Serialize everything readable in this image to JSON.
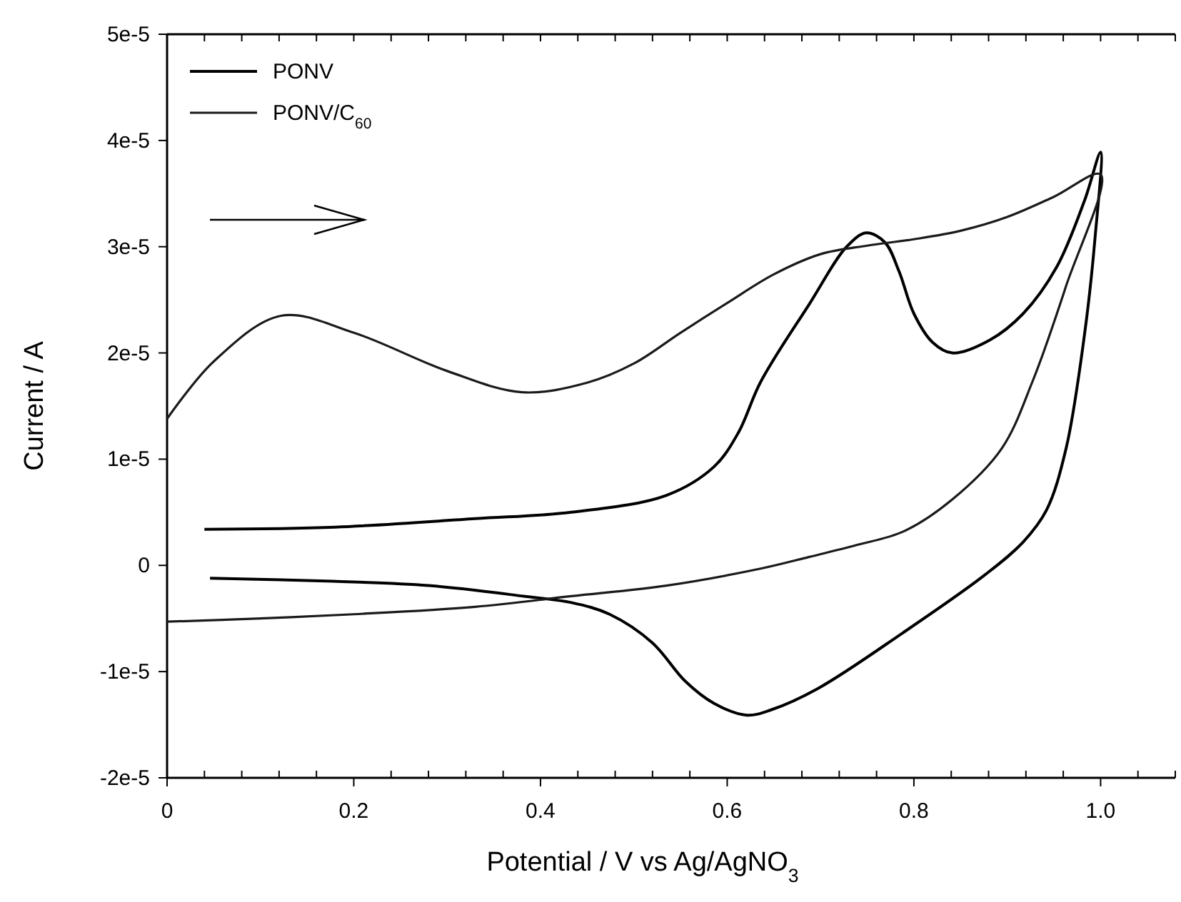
{
  "chart_data": {
    "type": "line",
    "xlabel": "Potential / V vs Ag/AgNO$_{3}$",
    "ylabel": "Current / A",
    "xlim": [
      0,
      1.08
    ],
    "ylim": [
      -2e-05,
      5e-05
    ],
    "xticks": [
      0,
      {
        "value": 0.04,
        "label": null
      },
      {
        "value": 0.08,
        "label": null
      },
      {
        "value": 0.12,
        "label": null
      },
      {
        "value": 0.16,
        "label": null
      },
      {
        "value": 0.2,
        "label": "0.2"
      },
      {
        "value": 0.24,
        "label": null
      },
      {
        "value": 0.28,
        "label": null
      },
      {
        "value": 0.32,
        "label": null
      },
      {
        "value": 0.36,
        "label": null
      },
      {
        "value": 0.4,
        "label": "0.4"
      },
      {
        "value": 0.44,
        "label": null
      },
      {
        "value": 0.48,
        "label": null
      },
      {
        "value": 0.52,
        "label": null
      },
      {
        "value": 0.56,
        "label": null
      },
      {
        "value": 0.6,
        "label": "0.6"
      },
      {
        "value": 0.64,
        "label": null
      },
      {
        "value": 0.68,
        "label": null
      },
      {
        "value": 0.72,
        "label": null
      },
      {
        "value": 0.76,
        "label": null
      },
      {
        "value": 0.8,
        "label": "0.8"
      },
      {
        "value": 0.84,
        "label": null
      },
      {
        "value": 0.88,
        "label": null
      },
      {
        "value": 0.92,
        "label": null
      },
      {
        "value": 0.96,
        "label": null
      },
      {
        "value": 1.0,
        "label": "1.0"
      },
      {
        "value": 1.04,
        "label": null
      },
      {
        "value": 1.08,
        "label": null
      }
    ],
    "yticks": [
      {
        "value": -2e-05,
        "label": "-2e-5"
      },
      {
        "value": -1e-05,
        "label": "-1e-5"
      },
      0,
      {
        "value": 1e-05,
        "label": "1e-5"
      },
      {
        "value": 2e-05,
        "label": "2e-5"
      },
      {
        "value": 3e-05,
        "label": "3e-5"
      },
      {
        "value": 4e-05,
        "label": "4e-5"
      },
      {
        "value": 5e-05,
        "label": "5e-5"
      }
    ],
    "grid": false,
    "legend": "top left",
    "marker": "none",
    "line_style": "solid",
    "series": [
      {
        "name": "PONV",
        "color": "#000000",
        "x": [
          0.04,
          0.18,
          0.33,
          0.433,
          0.535,
          0.586,
          0.612,
          0.636,
          0.688,
          0.728,
          0.749,
          0.769,
          0.784,
          0.8,
          0.82,
          0.841,
          0.881,
          0.917,
          0.953,
          0.983,
          1.0,
          0.994,
          0.983,
          0.963,
          0.942,
          0.917,
          0.876,
          0.789,
          0.697,
          0.647,
          0.621,
          0.586,
          0.555,
          0.52,
          0.474,
          0.433,
          0.382,
          0.28,
          0.178,
          0.046
        ],
        "values": [
          3.4e-06,
          3.6e-06,
          4.4e-06,
          5e-06,
          6.6e-06,
          9.3e-06,
          1.25e-05,
          1.73e-05,
          2.46e-05,
          3e-05,
          3.13e-05,
          3.04e-05,
          2.77e-05,
          2.37e-05,
          2.1e-05,
          2e-05,
          2.12e-05,
          2.37e-05,
          2.81e-05,
          3.44e-05,
          3.89e-05,
          3.08e-05,
          2.19e-05,
          1.1e-05,
          5.2e-06,
          2.2e-06,
          -9e-07,
          -6.3e-06,
          -1.16e-05,
          -1.36e-05,
          -1.41e-05,
          -1.3e-05,
          -1.09e-05,
          -7.3e-06,
          -4.6e-06,
          -3.5e-06,
          -2.9e-06,
          -1.9e-06,
          -1.5e-06,
          -1.2e-06
        ]
      },
      {
        "name": "PONV/C$_{60}$",
        "color": "#1a1a1a",
        "x": [
          0,
          0.05,
          0.122,
          0.2,
          0.3,
          0.38,
          0.45,
          0.5,
          0.55,
          0.6,
          0.65,
          0.7,
          0.75,
          0.8,
          0.85,
          0.9,
          0.95,
          1.0,
          0.963,
          0.927,
          0.894,
          0.841,
          0.789,
          0.738,
          0.688,
          0.636,
          0.535,
          0.433,
          0.33,
          0.2,
          0.1,
          0
        ],
        "values": [
          1.38e-05,
          1.92e-05,
          2.35e-05,
          2.19e-05,
          1.83e-05,
          1.63e-05,
          1.72e-05,
          1.9e-05,
          2.19e-05,
          2.47e-05,
          2.74e-05,
          2.93e-05,
          3.01e-05,
          3.07e-05,
          3.15e-05,
          3.28e-05,
          3.47e-05,
          3.68e-05,
          2.63e-05,
          1.73e-05,
          1.1e-05,
          6.2e-06,
          3.2e-06,
          1.9e-06,
          8e-07,
          -3e-07,
          -1.9e-06,
          -2.9e-06,
          -3.9e-06,
          -4.6e-06,
          -5e-06,
          -5.3e-06
        ]
      }
    ]
  }
}
